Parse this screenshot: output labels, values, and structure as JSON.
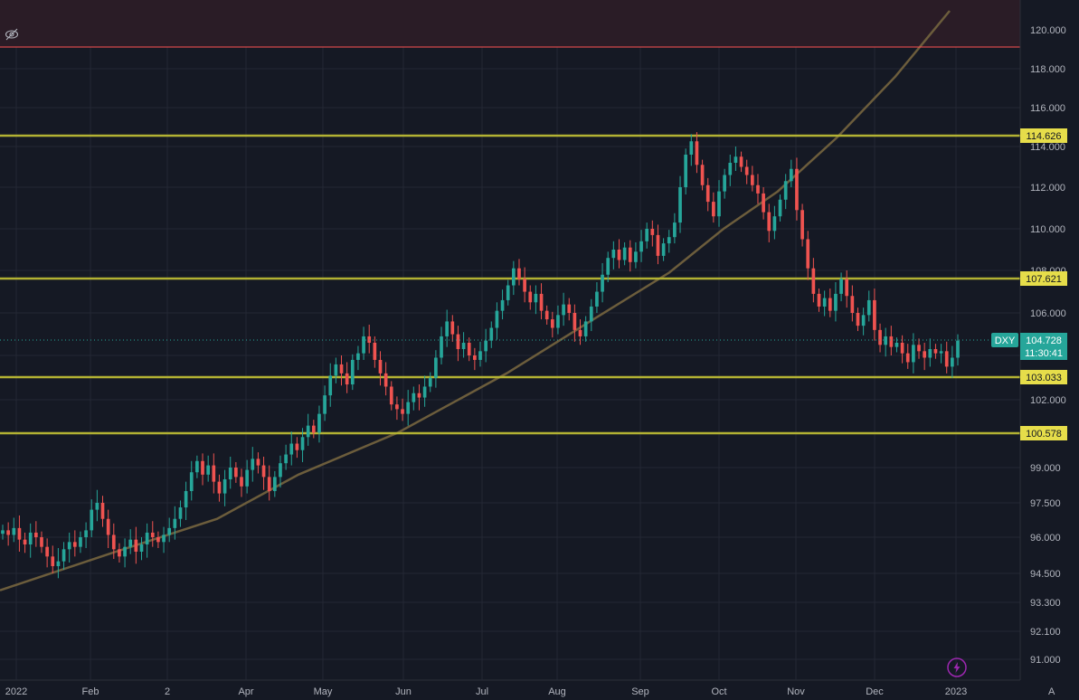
{
  "chart_data": {
    "type": "candlestick",
    "symbol": "DXY",
    "current_price": "104.728",
    "countdown": "11:30:41",
    "y_ticks": [
      {
        "value": 91.0,
        "label": "91.000"
      },
      {
        "value": 92.1,
        "label": "92.100"
      },
      {
        "value": 93.3,
        "label": "93.300"
      },
      {
        "value": 94.5,
        "label": "94.500"
      },
      {
        "value": 96.0,
        "label": "96.000"
      },
      {
        "value": 97.5,
        "label": "97.500"
      },
      {
        "value": 99.0,
        "label": "99.000"
      },
      {
        "value": 102.0,
        "label": "102.000"
      },
      {
        "value": 104.0,
        "label": "104.000"
      },
      {
        "value": 106.0,
        "label": "106.000"
      },
      {
        "value": 108.0,
        "label": "108.000"
      },
      {
        "value": 110.0,
        "label": "110.000"
      },
      {
        "value": 112.0,
        "label": "112.000"
      },
      {
        "value": 114.0,
        "label": "114.000"
      },
      {
        "value": 116.0,
        "label": "116.000"
      },
      {
        "value": 118.0,
        "label": "118.000"
      },
      {
        "value": 120.0,
        "label": "120.000"
      }
    ],
    "x_ticks": [
      "2022",
      "Feb",
      "2",
      "Apr",
      "May",
      "Jun",
      "Jul",
      "Aug",
      "Sep",
      "Oct",
      "Nov",
      "Dec",
      "2023"
    ],
    "horizontal_levels": [
      {
        "value": 114.626,
        "label": "114.626"
      },
      {
        "value": 107.621,
        "label": "107.621"
      },
      {
        "value": 103.033,
        "label": "103.033"
      },
      {
        "value": 100.578,
        "label": "100.578"
      }
    ],
    "red_level": 119.1,
    "trend_curve": [
      [
        0,
        93.8
      ],
      [
        120,
        95.3
      ],
      [
        240,
        96.8
      ],
      [
        330,
        98.7
      ],
      [
        440,
        100.6
      ],
      [
        560,
        103.2
      ],
      [
        660,
        105.8
      ],
      [
        740,
        107.9
      ],
      [
        800,
        110.0
      ],
      [
        860,
        111.8
      ],
      [
        925,
        114.5
      ],
      [
        990,
        117.6
      ],
      [
        1050,
        121.0
      ]
    ],
    "closes": [
      96.3,
      96.1,
      96.4,
      95.9,
      95.7,
      96.2,
      96.0,
      95.6,
      95.2,
      94.8,
      95.0,
      95.5,
      95.8,
      95.6,
      96.0,
      96.3,
      97.2,
      97.5,
      96.8,
      96.1,
      95.5,
      95.2,
      95.6,
      95.9,
      95.4,
      95.7,
      96.2,
      96.0,
      95.8,
      96.1,
      96.4,
      96.8,
      97.3,
      98.0,
      98.8,
      99.3,
      98.7,
      99.1,
      98.4,
      97.9,
      98.5,
      99.0,
      98.6,
      98.2,
      98.9,
      99.4,
      99.1,
      98.6,
      98.0,
      98.6,
      99.2,
      99.6,
      100.1,
      99.8,
      100.4,
      100.9,
      100.6,
      101.4,
      102.2,
      103.1,
      103.6,
      103.2,
      102.7,
      103.8,
      104.1,
      104.9,
      104.6,
      103.8,
      103.2,
      102.6,
      101.8,
      101.6,
      101.4,
      101.9,
      102.3,
      102.1,
      102.6,
      103.0,
      103.9,
      104.9,
      105.6,
      105.0,
      104.3,
      104.6,
      104.0,
      103.8,
      104.2,
      104.7,
      105.3,
      106.1,
      106.6,
      107.3,
      108.1,
      107.6,
      107.0,
      106.5,
      106.9,
      106.1,
      105.7,
      105.3,
      105.9,
      106.4,
      106.0,
      105.2,
      104.9,
      105.6,
      106.3,
      107.0,
      107.8,
      108.6,
      109.0,
      108.5,
      109.1,
      108.4,
      108.9,
      109.4,
      110.0,
      109.7,
      108.7,
      109.3,
      109.6,
      110.3,
      112.0,
      113.6,
      114.3,
      113.1,
      112.1,
      111.3,
      110.6,
      111.8,
      112.6,
      113.2,
      113.5,
      113.0,
      112.6,
      112.1,
      111.7,
      110.8,
      109.9,
      110.6,
      111.4,
      112.3,
      112.9,
      110.9,
      109.5,
      108.1,
      106.9,
      106.3,
      106.7,
      106.1,
      106.9,
      107.6,
      106.8,
      106.0,
      105.4,
      105.9,
      106.6,
      105.2,
      104.5,
      104.9,
      104.4,
      104.6,
      104.1,
      103.7,
      104.5,
      104.2,
      103.9,
      104.3,
      104.1,
      104.2,
      103.5,
      103.9,
      104.7
    ]
  },
  "ui": {
    "eye_icon": "eye-off-icon",
    "flash_icon": "lightning-icon",
    "auto_scale_label": "A"
  },
  "colors": {
    "background": "#151924",
    "up": "#26a69a",
    "down": "#ef5350",
    "level_line": "#b3b233",
    "level_tag": "#e6dd4a",
    "curve": "#6c5d3c",
    "red_line": "#ff5252",
    "dxy_tag": "#26a69a",
    "grid": "#232734",
    "axis_text": "#b2b5be"
  }
}
